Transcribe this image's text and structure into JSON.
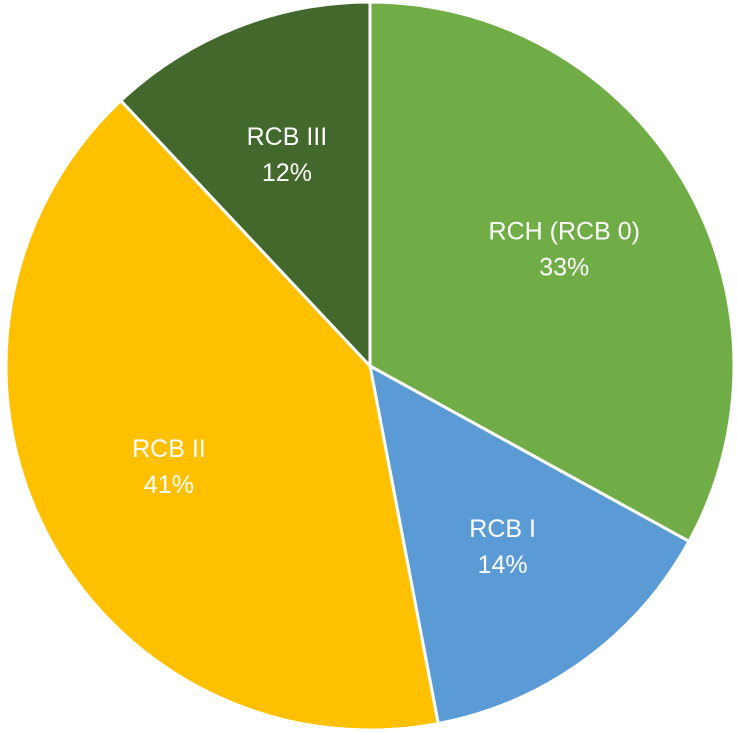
{
  "chart_data": {
    "type": "pie",
    "categories": [
      "RCH (RCB 0)",
      "RCB I",
      "RCB II",
      "RCB III"
    ],
    "values": [
      33,
      14,
      41,
      12
    ],
    "value_labels": [
      "33%",
      "14%",
      "41%",
      "12%"
    ],
    "colors": [
      "#70ad47",
      "#5b9bd5",
      "#ffc000",
      "#43682b"
    ]
  }
}
